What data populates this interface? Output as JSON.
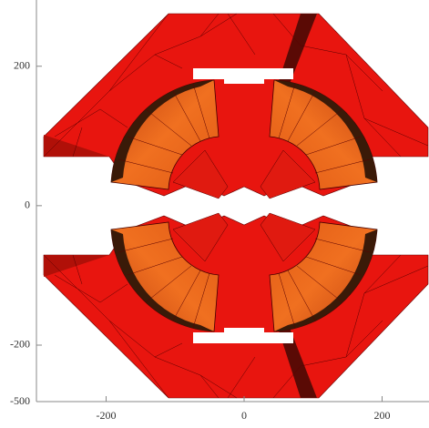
{
  "chart_data": {
    "type": "render",
    "xlim": [
      -301,
      268
    ],
    "xticks": [
      -200,
      0,
      200
    ],
    "ylim": [
      -281,
      295
    ],
    "yticks": [
      200,
      0,
      -200
    ],
    "corner_label": "-500"
  }
}
